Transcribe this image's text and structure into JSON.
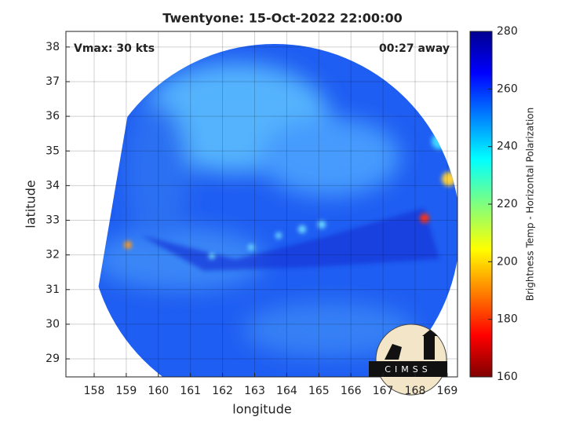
{
  "chart_data": {
    "type": "image",
    "title": "Twentyone: 15-Oct-2022 22:00:00",
    "annotations": [
      "Vmax: 30 kts",
      "00:27 away"
    ],
    "xlabel": "longitude",
    "ylabel": "latitude",
    "xlim": [
      157.12,
      169.32
    ],
    "xticks": [
      158,
      159,
      160,
      161,
      162,
      163,
      164,
      165,
      166,
      167,
      168,
      169
    ],
    "ylim": [
      28.48,
      38.45
    ],
    "yticks": [
      29,
      30,
      31,
      32,
      33,
      34,
      35,
      36,
      37,
      38
    ],
    "grid": true,
    "colorbar": {
      "label": "Brightness Temp - Horizontal Polarization",
      "lim": [
        160,
        280
      ],
      "ticks": [
        160,
        180,
        200,
        220,
        240,
        260,
        280
      ]
    },
    "logo": "CIMSS"
  }
}
